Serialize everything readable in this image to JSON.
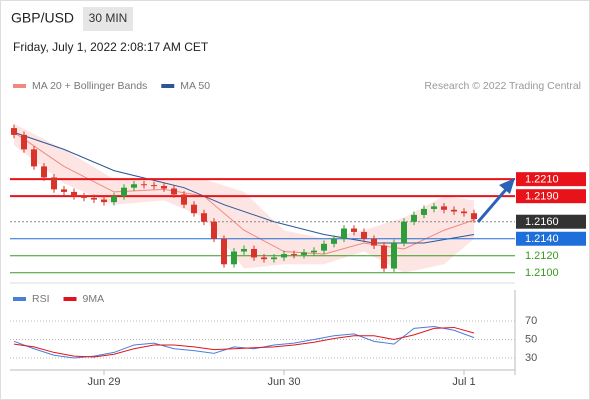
{
  "chart_data": {
    "type": "candlestick",
    "symbol": "GBP/USD",
    "timeframe": "30 MIN",
    "date": "Friday, July 1, 2022 2:08:17 AM CET",
    "credit": "Research © 2022 Trading Central",
    "categories": [
      null,
      null,
      null,
      null,
      null,
      null,
      null,
      null,
      null,
      "Jun 29",
      null,
      null,
      null,
      null,
      null,
      null,
      null,
      null,
      null,
      null,
      null,
      null,
      null,
      null,
      null,
      null,
      null,
      "Jun 30",
      null,
      null,
      null,
      null,
      null,
      null,
      null,
      null,
      null,
      null,
      null,
      null,
      null,
      null,
      null,
      null,
      null,
      "Jul 1",
      null
    ],
    "open": [
      1.227,
      1.2262,
      1.2245,
      1.2225,
      1.2212,
      1.2198,
      1.2195,
      1.219,
      1.2188,
      1.2186,
      1.2183,
      1.219,
      1.22,
      1.2204,
      1.2203,
      1.2202,
      1.2199,
      1.2192,
      1.218,
      1.217,
      1.216,
      1.214,
      1.211,
      1.2125,
      1.2128,
      1.2118,
      1.2116,
      1.2118,
      1.2122,
      1.2121,
      1.2124,
      1.2126,
      1.2134,
      1.214,
      1.2152,
      1.2148,
      1.214,
      1.2132,
      1.2105,
      1.2135,
      1.216,
      1.2168,
      1.2175,
      1.2178,
      1.2174,
      1.2172,
      1.217
    ],
    "high": [
      1.2274,
      1.2266,
      1.2249,
      1.2229,
      1.2216,
      1.2202,
      1.2199,
      1.2194,
      1.2192,
      1.219,
      1.2194,
      1.2204,
      1.2208,
      1.2208,
      1.2207,
      1.2206,
      1.2203,
      1.2196,
      1.2184,
      1.2174,
      1.2164,
      1.2144,
      1.2129,
      1.2132,
      1.2132,
      1.2122,
      1.2122,
      1.2126,
      1.2126,
      1.2128,
      1.213,
      1.2138,
      1.2144,
      1.2156,
      1.2156,
      1.2152,
      1.2144,
      1.2136,
      1.2139,
      1.2164,
      1.2172,
      1.2179,
      1.2182,
      1.2182,
      1.2178,
      1.2176,
      1.2174
    ],
    "low": [
      1.2258,
      1.2241,
      1.2221,
      1.2208,
      1.2194,
      1.2191,
      1.2186,
      1.2184,
      1.2182,
      1.2179,
      1.2179,
      1.2186,
      1.2196,
      1.2199,
      1.2198,
      1.2195,
      1.2188,
      1.2176,
      1.2166,
      1.2156,
      1.2136,
      1.2106,
      1.2106,
      1.2121,
      1.2114,
      1.2112,
      1.2112,
      1.2114,
      1.2117,
      1.2117,
      1.212,
      1.2122,
      1.213,
      1.2136,
      1.2144,
      1.2136,
      1.2128,
      1.2101,
      1.2101,
      1.2131,
      1.2156,
      1.2164,
      1.2171,
      1.217,
      1.2168,
      1.2166,
      1.2159
    ],
    "close": [
      1.2262,
      1.2245,
      1.2225,
      1.2212,
      1.2198,
      1.2195,
      1.219,
      1.2188,
      1.2186,
      1.2183,
      1.219,
      1.22,
      1.2204,
      1.2203,
      1.2202,
      1.2199,
      1.2192,
      1.218,
      1.217,
      1.216,
      1.214,
      1.211,
      1.2125,
      1.2128,
      1.2118,
      1.2116,
      1.2118,
      1.2122,
      1.2121,
      1.2124,
      1.2126,
      1.2134,
      1.214,
      1.2152,
      1.2148,
      1.214,
      1.2132,
      1.2105,
      1.2135,
      1.216,
      1.2168,
      1.2175,
      1.2178,
      1.2174,
      1.2172,
      1.217,
      1.2163
    ],
    "up_color": "#2e9e3a",
    "down_color": "#d9342b",
    "ylim": [
      1.2088,
      1.2303
    ],
    "indicators": [
      {
        "name": "MA 20 + Bollinger Bands",
        "color": "#f08a80",
        "band_color": "#fde0de",
        "x": [
          0,
          5,
          10,
          15,
          19,
          23,
          27,
          31,
          35,
          39,
          43,
          46
        ],
        "values": [
          1.2265,
          1.2225,
          1.2195,
          1.2198,
          1.219,
          1.215,
          1.2125,
          1.2122,
          1.2135,
          1.2128,
          1.215,
          1.2162
        ],
        "upper": [
          1.2275,
          1.2245,
          1.221,
          1.221,
          1.221,
          1.2195,
          1.215,
          1.214,
          1.215,
          1.2165,
          1.219,
          1.2185
        ],
        "lower": [
          1.225,
          1.2205,
          1.218,
          1.2185,
          1.2165,
          1.2105,
          1.211,
          1.211,
          1.2125,
          1.21,
          1.211,
          1.214
        ]
      },
      {
        "name": "MA 50",
        "color": "#2b5797",
        "x": [
          0,
          5,
          10,
          17,
          21,
          26,
          31,
          36,
          41,
          46
        ],
        "values": [
          1.2265,
          1.2245,
          1.222,
          1.22,
          1.218,
          1.216,
          1.2145,
          1.2135,
          1.2135,
          1.2145
        ]
      }
    ],
    "levels": [
      {
        "value": 1.221,
        "label": "1.2210",
        "color": "#e8131a",
        "style": "box"
      },
      {
        "value": 1.219,
        "label": "1.2190",
        "color": "#e8131a",
        "style": "box"
      },
      {
        "value": 1.216,
        "label": "1.2160",
        "color": "#333333",
        "style": "dotted-box"
      },
      {
        "value": 1.214,
        "label": "1.2140",
        "color": "#1e6fd9",
        "style": "box"
      },
      {
        "value": 1.212,
        "label": "1.2120",
        "color": "#3a9a22",
        "style": "text"
      },
      {
        "value": 1.21,
        "label": "1.2100",
        "color": "#3a9a22",
        "style": "text"
      }
    ],
    "rsi": {
      "ylim": [
        17,
        97
      ],
      "yticks": [
        70,
        50,
        30
      ],
      "series": [
        {
          "name": "RSI",
          "color": "#4a7fd8",
          "x": [
            0,
            2,
            4,
            6,
            8,
            10,
            12,
            14,
            16,
            18,
            20,
            22,
            24,
            26,
            28,
            30,
            32,
            34,
            36,
            38,
            40,
            42,
            44,
            46
          ],
          "values": [
            48,
            40,
            33,
            30,
            32,
            36,
            44,
            46,
            40,
            38,
            35,
            42,
            40,
            44,
            46,
            50,
            54,
            56,
            48,
            45,
            62,
            64,
            60,
            52
          ]
        },
        {
          "name": "9MA",
          "color": "#e0141e",
          "x": [
            0,
            2,
            4,
            6,
            8,
            10,
            12,
            14,
            16,
            18,
            20,
            22,
            24,
            26,
            28,
            30,
            32,
            34,
            36,
            38,
            40,
            42,
            44,
            46
          ],
          "values": [
            45,
            42,
            36,
            32,
            31,
            34,
            40,
            44,
            44,
            42,
            39,
            40,
            41,
            42,
            44,
            47,
            51,
            54,
            54,
            50,
            55,
            62,
            63,
            57
          ]
        }
      ]
    }
  }
}
